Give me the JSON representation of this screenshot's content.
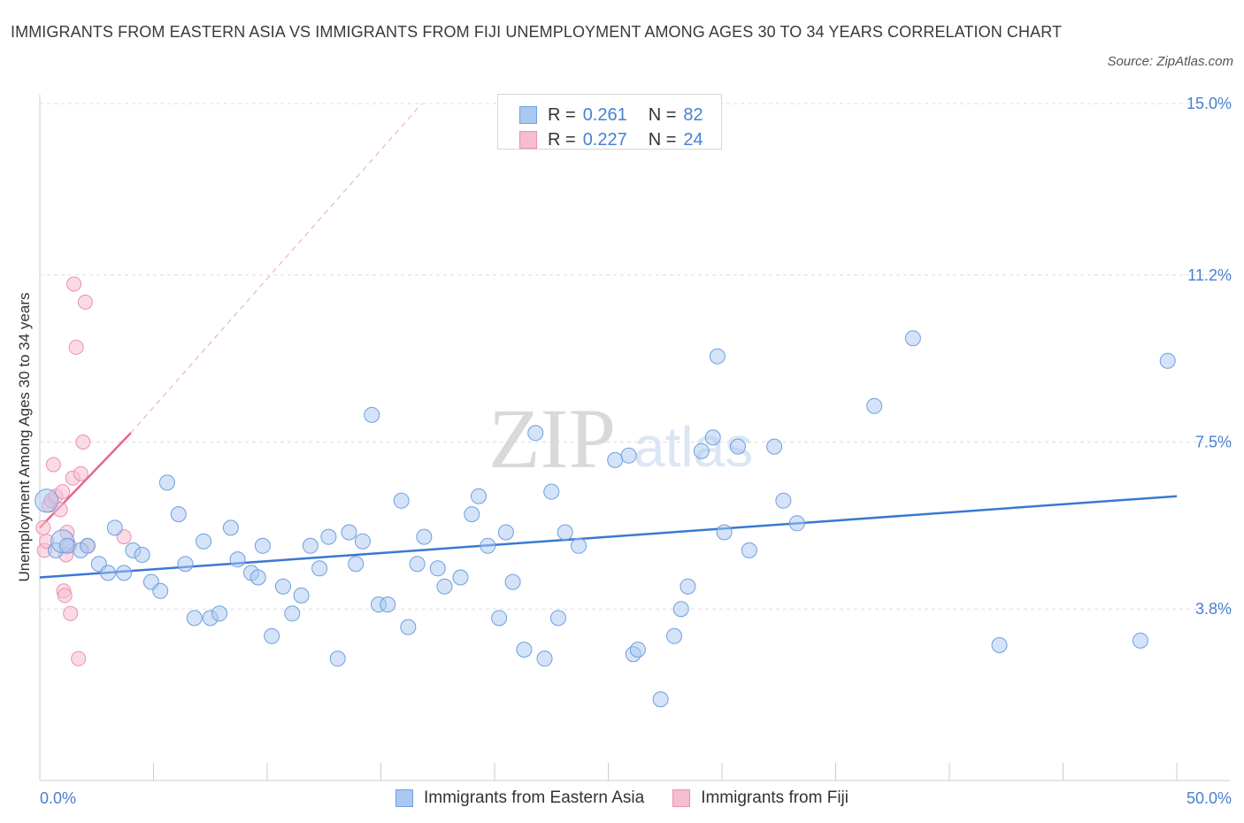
{
  "title": "IMMIGRANTS FROM EASTERN ASIA VS IMMIGRANTS FROM FIJI UNEMPLOYMENT AMONG AGES 30 TO 34 YEARS CORRELATION CHART",
  "source": "Source: ZipAtlas.com",
  "watermark": {
    "zip": "ZIP",
    "atlas": "atlas"
  },
  "legend_top": [
    {
      "r_label": "R =",
      "r_value": "0.261",
      "n_label": "N =",
      "n_value": "82"
    },
    {
      "r_label": "R =",
      "r_value": "0.227",
      "n_label": "N =",
      "n_value": "24"
    }
  ],
  "legend_bottom": [
    "Immigrants from Eastern Asia",
    "Immigrants from Fiji"
  ],
  "colors": {
    "blue_fill": "#aac8f0",
    "blue_stroke": "#6f9fe0",
    "blue_line": "#3a78d4",
    "pink_fill": "#f5bdd0",
    "pink_stroke": "#ec8fb0",
    "pink_line": "#e8668f",
    "grid": "#dddddd",
    "axis": "#cccccc",
    "tick_text": "#4a7fd1"
  },
  "chart_data": {
    "type": "scatter",
    "title": "IMMIGRANTS FROM EASTERN ASIA VS IMMIGRANTS FROM FIJI UNEMPLOYMENT AMONG AGES 30 TO 34 YEARS CORRELATION CHART",
    "xlabel": "",
    "ylabel": "Unemployment Among Ages 30 to 34 years",
    "xlim": [
      0,
      50
    ],
    "ylim": [
      0,
      15
    ],
    "x_tick_labels": [
      "0.0%",
      "50.0%"
    ],
    "y_ticks": [
      3.8,
      7.5,
      11.2,
      15.0
    ],
    "y_tick_labels": [
      "3.8%",
      "7.5%",
      "11.2%",
      "15.0%"
    ],
    "grid": "horizontal dashed",
    "legend_position": "top-center",
    "series": [
      {
        "name": "Immigrants from Eastern Asia",
        "R": 0.261,
        "N": 82,
        "trend": {
          "x": [
            0,
            50
          ],
          "y": [
            4.5,
            6.3
          ]
        },
        "points": [
          [
            0.3,
            6.2
          ],
          [
            0.7,
            5.1
          ],
          [
            1.0,
            5.3
          ],
          [
            1.2,
            5.2
          ],
          [
            1.8,
            5.1
          ],
          [
            2.1,
            5.2
          ],
          [
            2.6,
            4.8
          ],
          [
            3.0,
            4.6
          ],
          [
            3.3,
            5.6
          ],
          [
            3.7,
            4.6
          ],
          [
            4.1,
            5.1
          ],
          [
            4.5,
            5.0
          ],
          [
            4.9,
            4.4
          ],
          [
            5.3,
            4.2
          ],
          [
            5.6,
            6.6
          ],
          [
            6.1,
            5.9
          ],
          [
            6.4,
            4.8
          ],
          [
            6.8,
            3.6
          ],
          [
            7.2,
            5.3
          ],
          [
            7.5,
            3.6
          ],
          [
            7.9,
            3.7
          ],
          [
            8.4,
            5.6
          ],
          [
            8.7,
            4.9
          ],
          [
            9.3,
            4.6
          ],
          [
            9.6,
            4.5
          ],
          [
            9.8,
            5.2
          ],
          [
            10.2,
            3.2
          ],
          [
            10.7,
            4.3
          ],
          [
            11.1,
            3.7
          ],
          [
            11.5,
            4.1
          ],
          [
            11.9,
            5.2
          ],
          [
            12.3,
            4.7
          ],
          [
            12.7,
            5.4
          ],
          [
            13.1,
            2.7
          ],
          [
            13.6,
            5.5
          ],
          [
            13.9,
            4.8
          ],
          [
            14.2,
            5.3
          ],
          [
            14.6,
            8.1
          ],
          [
            14.9,
            3.9
          ],
          [
            15.3,
            3.9
          ],
          [
            15.9,
            6.2
          ],
          [
            16.2,
            3.4
          ],
          [
            16.6,
            4.8
          ],
          [
            16.9,
            5.4
          ],
          [
            17.5,
            4.7
          ],
          [
            17.8,
            4.3
          ],
          [
            18.5,
            4.5
          ],
          [
            19.0,
            5.9
          ],
          [
            19.3,
            6.3
          ],
          [
            19.7,
            5.2
          ],
          [
            20.2,
            3.6
          ],
          [
            20.5,
            5.5
          ],
          [
            20.8,
            4.4
          ],
          [
            21.3,
            2.9
          ],
          [
            21.8,
            7.7
          ],
          [
            22.2,
            2.7
          ],
          [
            22.5,
            6.4
          ],
          [
            22.8,
            3.6
          ],
          [
            23.1,
            5.5
          ],
          [
            23.7,
            5.2
          ],
          [
            25.3,
            7.1
          ],
          [
            25.9,
            7.2
          ],
          [
            26.1,
            2.8
          ],
          [
            26.3,
            2.9
          ],
          [
            27.3,
            1.8
          ],
          [
            27.9,
            3.2
          ],
          [
            28.2,
            3.8
          ],
          [
            28.5,
            4.3
          ],
          [
            29.1,
            7.3
          ],
          [
            29.6,
            7.6
          ],
          [
            29.8,
            9.4
          ],
          [
            30.1,
            5.5
          ],
          [
            30.7,
            7.4
          ],
          [
            31.2,
            5.1
          ],
          [
            32.3,
            7.4
          ],
          [
            32.7,
            6.2
          ],
          [
            33.3,
            5.7
          ],
          [
            36.7,
            8.3
          ],
          [
            38.4,
            9.8
          ],
          [
            42.2,
            3.0
          ],
          [
            48.4,
            3.1
          ],
          [
            49.6,
            9.3
          ]
        ]
      },
      {
        "name": "Immigrants from Fiji",
        "R": 0.227,
        "N": 24,
        "trend": {
          "x": [
            0,
            4.0
          ],
          "y": [
            5.6,
            7.7
          ]
        },
        "trend_extension": {
          "x": [
            4.0,
            16.8
          ],
          "y": [
            7.7,
            15.0
          ]
        },
        "points": [
          [
            0.15,
            5.6
          ],
          [
            0.2,
            5.1
          ],
          [
            0.3,
            5.3
          ],
          [
            0.4,
            6.1
          ],
          [
            0.5,
            6.2
          ],
          [
            0.6,
            7.0
          ],
          [
            0.7,
            6.3
          ],
          [
            0.9,
            6.0
          ],
          [
            1.0,
            6.4
          ],
          [
            1.05,
            4.2
          ],
          [
            1.1,
            4.1
          ],
          [
            1.15,
            5.0
          ],
          [
            1.2,
            5.5
          ],
          [
            1.3,
            5.2
          ],
          [
            1.35,
            3.7
          ],
          [
            1.45,
            6.7
          ],
          [
            1.5,
            11.0
          ],
          [
            1.6,
            9.6
          ],
          [
            1.7,
            2.7
          ],
          [
            1.8,
            6.8
          ],
          [
            1.9,
            7.5
          ],
          [
            2.0,
            10.6
          ],
          [
            2.1,
            5.2
          ],
          [
            3.7,
            5.4
          ]
        ]
      }
    ]
  }
}
